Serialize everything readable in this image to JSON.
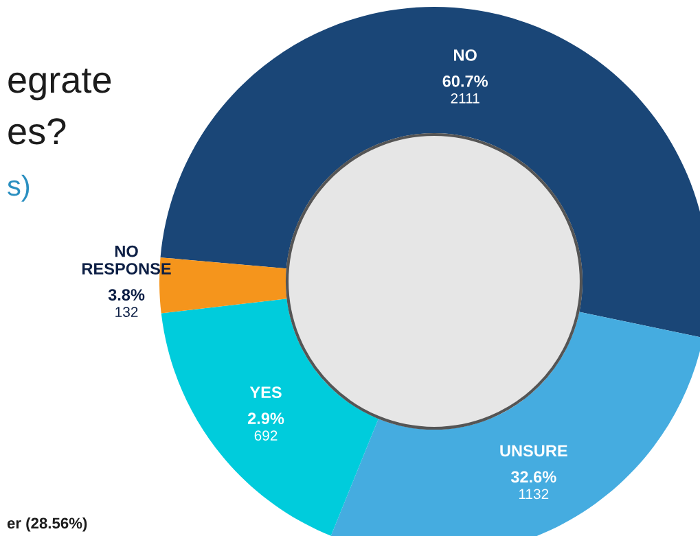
{
  "chart_data": {
    "type": "donut",
    "categories": [
      "NO",
      "UNSURE",
      "YES",
      "NO RESPONSE"
    ],
    "values": [
      2111,
      1132,
      692,
      132
    ],
    "value_labels": [
      "60.7%\n2111",
      "32.6%\n1132",
      "2.9%\n692",
      "3.8%\n132"
    ],
    "colors": [
      "#1a4677",
      "#45ace0",
      "#00ccdc",
      "#f5951c"
    ],
    "annotations": [
      "egrate",
      "es?",
      "s)",
      "er (28.56%)"
    ],
    "legend": false
  }
}
